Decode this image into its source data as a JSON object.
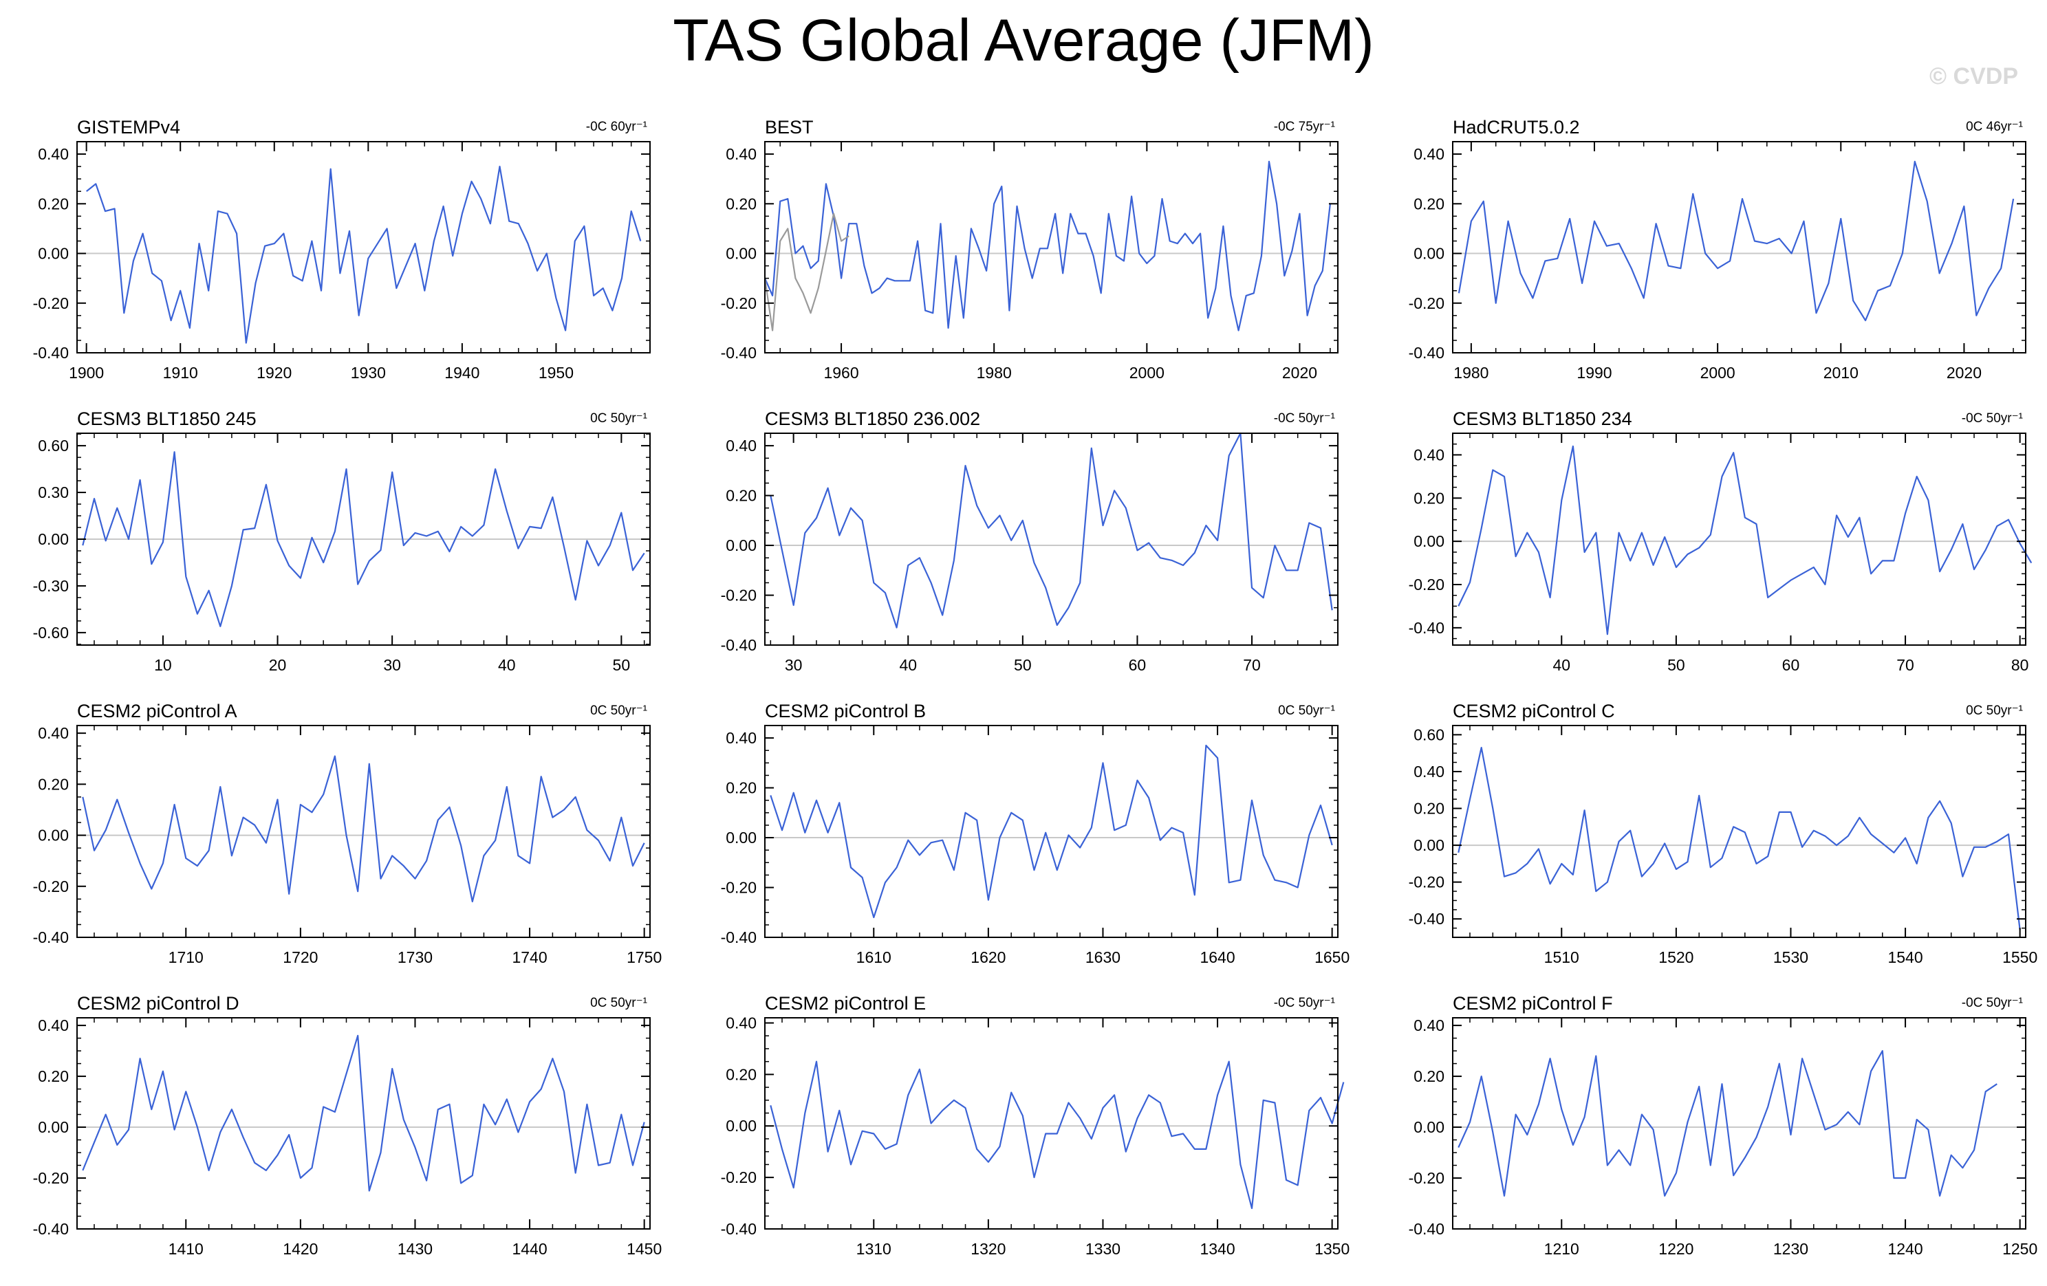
{
  "title": "TAS Global Average (JFM)",
  "watermark": "© CVDP",
  "colors": {
    "series": "#3a62d6",
    "secondary": "#9a9a9a",
    "zero_line": "#c8c8c8",
    "axes": "#000000"
  },
  "chart_data": [
    {
      "type": "line",
      "title": "GISTEMPv4",
      "trend": "-0C 60yr⁻¹",
      "xlim": [
        1899,
        1960
      ],
      "ylim": [
        -0.4,
        0.45
      ],
      "xticks": [
        1900,
        1910,
        1920,
        1930,
        1940,
        1950
      ],
      "yticks": [
        -0.4,
        -0.2,
        0.0,
        0.2,
        0.4
      ],
      "ytick_labels": [
        "-0.40",
        "-0.20",
        "0.00",
        "0.20",
        "0.40"
      ],
      "x_start": 1900,
      "series": [
        {
          "values": [
            0.25,
            0.28,
            0.17,
            0.18,
            -0.24,
            -0.03,
            0.08,
            -0.08,
            -0.11,
            -0.27,
            -0.15,
            -0.3,
            0.04,
            -0.15,
            0.17,
            0.16,
            0.08,
            -0.36,
            -0.12,
            0.03,
            0.04,
            0.08,
            -0.09,
            -0.11,
            0.05,
            -0.15,
            0.34,
            -0.08,
            0.09,
            -0.25,
            -0.02,
            0.04,
            0.1,
            -0.14,
            -0.05,
            0.04,
            -0.15,
            0.05,
            0.19,
            -0.01,
            0.16,
            0.29,
            0.22,
            0.12,
            0.35,
            0.13,
            0.12,
            0.04,
            -0.07,
            0.0,
            -0.18,
            -0.31,
            0.05,
            0.11,
            -0.17,
            -0.14,
            -0.23,
            -0.1,
            0.17,
            0.05
          ]
        }
      ]
    },
    {
      "type": "line",
      "title": "BEST",
      "trend": "-0C 75yr⁻¹",
      "xlim": [
        1950,
        2025
      ],
      "ylim": [
        -0.4,
        0.45
      ],
      "xticks": [
        1960,
        1980,
        2000,
        2020
      ],
      "yticks": [
        -0.4,
        -0.2,
        0.0,
        0.2,
        0.4
      ],
      "ytick_labels": [
        "-0.40",
        "-0.20",
        "0.00",
        "0.20",
        "0.40"
      ],
      "x_start": 1950,
      "series": [
        {
          "values": [
            -0.1,
            -0.17,
            0.21,
            0.22,
            0.0,
            0.03,
            -0.06,
            -0.03,
            0.28,
            0.15,
            -0.1,
            0.12,
            0.12,
            -0.05,
            -0.16,
            -0.14,
            -0.1,
            -0.11,
            -0.11,
            -0.11,
            0.05,
            -0.23,
            -0.24,
            0.12,
            -0.3,
            -0.01,
            -0.26,
            0.1,
            0.02,
            -0.07,
            0.2,
            0.27,
            -0.23,
            0.19,
            0.02,
            -0.1,
            0.02,
            0.02,
            0.16,
            -0.08,
            0.16,
            0.08,
            0.08,
            -0.01,
            -0.16,
            0.16,
            -0.01,
            -0.03,
            0.23,
            0.0,
            -0.04,
            -0.01,
            0.22,
            0.05,
            0.04,
            0.08,
            0.04,
            0.08,
            -0.26,
            -0.14,
            0.11,
            -0.17,
            -0.31,
            -0.17,
            -0.16,
            -0.01,
            0.37,
            0.2,
            -0.09,
            0.01,
            0.16,
            -0.25,
            -0.13,
            -0.07,
            0.2
          ]
        },
        {
          "x_start": 1950,
          "values": [
            -0.1,
            -0.31,
            0.05,
            0.1,
            -0.1,
            -0.16,
            -0.24,
            -0.14,
            0.01,
            0.16,
            0.05,
            0.07
          ]
        }
      ]
    },
    {
      "type": "line",
      "title": "HadCRUT5.0.2",
      "trend": "0C 46yr⁻¹",
      "xlim": [
        1978.5,
        2025
      ],
      "ylim": [
        -0.4,
        0.45
      ],
      "xticks": [
        1980,
        1990,
        2000,
        2010,
        2020
      ],
      "yticks": [
        -0.4,
        -0.2,
        0.0,
        0.2,
        0.4
      ],
      "ytick_labels": [
        "-0.40",
        "-0.20",
        "0.00",
        "0.20",
        "0.40"
      ],
      "x_start": 1979,
      "series": [
        {
          "values": [
            -0.16,
            0.13,
            0.21,
            -0.2,
            0.13,
            -0.08,
            -0.18,
            -0.03,
            -0.02,
            0.14,
            -0.12,
            0.13,
            0.03,
            0.04,
            -0.06,
            -0.18,
            0.12,
            -0.05,
            -0.06,
            0.24,
            0.0,
            -0.06,
            -0.03,
            0.22,
            0.05,
            0.04,
            0.06,
            0.0,
            0.13,
            -0.24,
            -0.12,
            0.14,
            -0.19,
            -0.27,
            -0.15,
            -0.13,
            0.0,
            0.37,
            0.21,
            -0.08,
            0.04,
            0.19,
            -0.25,
            -0.14,
            -0.06,
            0.22
          ]
        }
      ]
    },
    {
      "type": "line",
      "title": "CESM3 BLT1850 245",
      "trend": "0C 50yr⁻¹",
      "xlim": [
        2.5,
        52.5
      ],
      "ylim": [
        -0.68,
        0.68
      ],
      "xticks": [
        10,
        20,
        30,
        40,
        50
      ],
      "yticks": [
        -0.6,
        -0.3,
        0.0,
        0.3,
        0.6
      ],
      "ytick_labels": [
        "-0.60",
        "-0.30",
        "0.00",
        "0.30",
        "0.60"
      ],
      "x_start": 3,
      "series": [
        {
          "values": [
            -0.04,
            0.26,
            -0.01,
            0.2,
            0.0,
            0.38,
            -0.16,
            -0.02,
            0.56,
            -0.24,
            -0.48,
            -0.33,
            -0.56,
            -0.3,
            0.06,
            0.07,
            0.35,
            -0.01,
            -0.17,
            -0.25,
            0.01,
            -0.15,
            0.05,
            0.45,
            -0.29,
            -0.14,
            -0.07,
            0.43,
            -0.04,
            0.04,
            0.02,
            0.05,
            -0.08,
            0.08,
            0.02,
            0.09,
            0.45,
            0.18,
            -0.06,
            0.08,
            0.07,
            0.27,
            -0.05,
            -0.39,
            -0.01,
            -0.17,
            -0.04,
            0.17,
            -0.2,
            -0.09
          ]
        }
      ]
    },
    {
      "type": "line",
      "title": "CESM3 BLT1850 236.002",
      "trend": "-0C 50yr⁻¹",
      "xlim": [
        27.5,
        77.5
      ],
      "ylim": [
        -0.4,
        0.45
      ],
      "xticks": [
        30,
        40,
        50,
        60,
        70
      ],
      "yticks": [
        -0.4,
        -0.2,
        0.0,
        0.2,
        0.4
      ],
      "ytick_labels": [
        "-0.40",
        "-0.20",
        "0.00",
        "0.20",
        "0.40"
      ],
      "x_start": 28,
      "series": [
        {
          "values": [
            0.2,
            -0.02,
            -0.24,
            0.05,
            0.11,
            0.23,
            0.04,
            0.15,
            0.1,
            -0.15,
            -0.19,
            -0.33,
            -0.08,
            -0.05,
            -0.15,
            -0.28,
            -0.06,
            0.32,
            0.16,
            0.07,
            0.12,
            0.02,
            0.1,
            -0.07,
            -0.17,
            -0.32,
            -0.25,
            -0.15,
            0.39,
            0.08,
            0.22,
            0.15,
            -0.02,
            0.01,
            -0.05,
            -0.06,
            -0.08,
            -0.03,
            0.08,
            0.02,
            0.36,
            0.45,
            -0.17,
            -0.21,
            0.0,
            -0.1,
            -0.1,
            0.09,
            0.07,
            -0.26
          ]
        }
      ]
    },
    {
      "type": "line",
      "title": "CESM3 BLT1850 234",
      "trend": "-0C 50yr⁻¹",
      "xlim": [
        30.5,
        80.5
      ],
      "ylim": [
        -0.48,
        0.5
      ],
      "xticks": [
        40,
        50,
        60,
        70,
        80
      ],
      "yticks": [
        -0.4,
        -0.2,
        0.0,
        0.2,
        0.4
      ],
      "ytick_labels": [
        "-0.40",
        "-0.20",
        "0.00",
        "0.20",
        "0.40"
      ],
      "x_start": 31,
      "series": [
        {
          "values": [
            -0.3,
            -0.19,
            0.06,
            0.33,
            0.3,
            -0.07,
            0.04,
            -0.05,
            -0.26,
            0.19,
            0.44,
            -0.05,
            0.04,
            -0.43,
            0.04,
            -0.09,
            0.04,
            -0.11,
            0.02,
            -0.12,
            -0.06,
            -0.03,
            0.03,
            0.3,
            0.41,
            0.11,
            0.08,
            -0.26,
            -0.22,
            -0.18,
            -0.15,
            -0.12,
            -0.2,
            0.12,
            0.02,
            0.11,
            -0.15,
            -0.09,
            -0.09,
            0.13,
            0.3,
            0.19,
            -0.14,
            -0.04,
            0.08,
            -0.13,
            -0.04,
            0.07,
            0.1,
            -0.01,
            -0.1
          ]
        }
      ]
    },
    {
      "type": "line",
      "title": "CESM2 piControl A",
      "trend": "0C 50yr⁻¹",
      "xlim": [
        1700.5,
        1750.5
      ],
      "ylim": [
        -0.4,
        0.43
      ],
      "xticks": [
        1710,
        1720,
        1730,
        1740,
        1750
      ],
      "yticks": [
        -0.4,
        -0.2,
        0.0,
        0.2,
        0.4
      ],
      "ytick_labels": [
        "-0.40",
        "-0.20",
        "0.00",
        "0.20",
        "0.40"
      ],
      "x_start": 1701,
      "series": [
        {
          "values": [
            0.15,
            -0.06,
            0.02,
            0.14,
            0.01,
            -0.11,
            -0.21,
            -0.11,
            0.12,
            -0.09,
            -0.12,
            -0.06,
            0.19,
            -0.08,
            0.07,
            0.04,
            -0.03,
            0.14,
            -0.23,
            0.12,
            0.09,
            0.16,
            0.31,
            0.0,
            -0.22,
            0.28,
            -0.17,
            -0.08,
            -0.12,
            -0.17,
            -0.1,
            0.06,
            0.11,
            -0.04,
            -0.26,
            -0.08,
            -0.02,
            0.19,
            -0.08,
            -0.11,
            0.23,
            0.07,
            0.1,
            0.15,
            0.02,
            -0.02,
            -0.1,
            0.07,
            -0.12,
            -0.03
          ]
        }
      ]
    },
    {
      "type": "line",
      "title": "CESM2 piControl B",
      "trend": "0C 50yr⁻¹",
      "xlim": [
        1600.5,
        1650.5
      ],
      "ylim": [
        -0.4,
        0.45
      ],
      "xticks": [
        1610,
        1620,
        1630,
        1640,
        1650
      ],
      "yticks": [
        -0.4,
        -0.2,
        0.0,
        0.2,
        0.4
      ],
      "ytick_labels": [
        "-0.40",
        "-0.20",
        "0.00",
        "0.20",
        "0.40"
      ],
      "x_start": 1601,
      "series": [
        {
          "values": [
            0.17,
            0.03,
            0.18,
            0.02,
            0.15,
            0.02,
            0.14,
            -0.12,
            -0.16,
            -0.32,
            -0.18,
            -0.12,
            -0.01,
            -0.07,
            -0.02,
            -0.01,
            -0.13,
            0.1,
            0.07,
            -0.25,
            0.0,
            0.1,
            0.07,
            -0.13,
            0.02,
            -0.13,
            0.01,
            -0.04,
            0.04,
            0.3,
            0.03,
            0.05,
            0.23,
            0.16,
            -0.01,
            0.04,
            0.02,
            -0.23,
            0.37,
            0.32,
            -0.18,
            -0.17,
            0.15,
            -0.07,
            -0.17,
            -0.18,
            -0.2,
            0.01,
            0.13,
            -0.03
          ]
        }
      ]
    },
    {
      "type": "line",
      "title": "CESM2 piControl C",
      "trend": "0C 50yr⁻¹",
      "xlim": [
        1500.5,
        1550.5
      ],
      "ylim": [
        -0.5,
        0.65
      ],
      "xticks": [
        1510,
        1520,
        1530,
        1540,
        1550
      ],
      "yticks": [
        -0.4,
        -0.2,
        0.0,
        0.2,
        0.4,
        0.6
      ],
      "ytick_labels": [
        "-0.40",
        "-0.20",
        "0.00",
        "0.20",
        "0.40",
        "0.60"
      ],
      "x_start": 1501,
      "series": [
        {
          "values": [
            -0.04,
            0.25,
            0.53,
            0.2,
            -0.17,
            -0.15,
            -0.1,
            -0.02,
            -0.21,
            -0.1,
            -0.16,
            0.19,
            -0.25,
            -0.2,
            0.02,
            0.08,
            -0.17,
            -0.1,
            0.01,
            -0.13,
            -0.09,
            0.27,
            -0.12,
            -0.07,
            0.1,
            0.07,
            -0.1,
            -0.06,
            0.18,
            0.18,
            -0.01,
            0.08,
            0.05,
            0.0,
            0.05,
            0.15,
            0.06,
            0.01,
            -0.04,
            0.04,
            -0.1,
            0.15,
            0.24,
            0.12,
            -0.17,
            -0.01,
            -0.01,
            0.02,
            0.06,
            -0.46
          ]
        }
      ]
    },
    {
      "type": "line",
      "title": "CESM2 piControl D",
      "trend": "0C 50yr⁻¹",
      "xlim": [
        1400.5,
        1450.5
      ],
      "ylim": [
        -0.4,
        0.43
      ],
      "xticks": [
        1410,
        1420,
        1430,
        1440,
        1450
      ],
      "yticks": [
        -0.4,
        -0.2,
        0.0,
        0.2,
        0.4
      ],
      "ytick_labels": [
        "-0.40",
        "-0.20",
        "0.00",
        "0.20",
        "0.40"
      ],
      "x_start": 1401,
      "series": [
        {
          "values": [
            -0.17,
            -0.06,
            0.05,
            -0.07,
            -0.01,
            0.27,
            0.07,
            0.22,
            -0.01,
            0.14,
            0.0,
            -0.17,
            -0.02,
            0.07,
            -0.04,
            -0.14,
            -0.17,
            -0.11,
            -0.03,
            -0.2,
            -0.16,
            0.08,
            0.06,
            0.21,
            0.36,
            -0.25,
            -0.1,
            0.23,
            0.03,
            -0.08,
            -0.21,
            0.07,
            0.09,
            -0.22,
            -0.19,
            0.09,
            0.01,
            0.11,
            -0.02,
            0.1,
            0.15,
            0.27,
            0.14,
            -0.18,
            0.09,
            -0.15,
            -0.14,
            0.05,
            -0.15,
            0.02
          ]
        }
      ]
    },
    {
      "type": "line",
      "title": "CESM2 piControl E",
      "trend": "-0C 50yr⁻¹",
      "xlim": [
        1300.5,
        1350.5
      ],
      "ylim": [
        -0.4,
        0.42
      ],
      "xticks": [
        1310,
        1320,
        1330,
        1340,
        1350
      ],
      "yticks": [
        -0.4,
        -0.2,
        0.0,
        0.2,
        0.4
      ],
      "ytick_labels": [
        "-0.40",
        "-0.20",
        "0.00",
        "0.20",
        "0.40"
      ],
      "x_start": 1301,
      "series": [
        {
          "values": [
            0.08,
            -0.09,
            -0.24,
            0.05,
            0.25,
            -0.1,
            0.06,
            -0.15,
            -0.02,
            -0.03,
            -0.09,
            -0.07,
            0.12,
            0.22,
            0.01,
            0.06,
            0.1,
            0.07,
            -0.09,
            -0.14,
            -0.08,
            0.13,
            0.04,
            -0.2,
            -0.03,
            -0.03,
            0.09,
            0.03,
            -0.05,
            0.07,
            0.12,
            -0.1,
            0.03,
            0.12,
            0.09,
            -0.04,
            -0.03,
            -0.09,
            -0.09,
            0.12,
            0.25,
            -0.15,
            -0.32,
            0.1,
            0.09,
            -0.21,
            -0.23,
            0.06,
            0.11,
            0.01,
            0.17
          ]
        }
      ]
    },
    {
      "type": "line",
      "title": "CESM2 piControl F",
      "trend": "-0C 50yr⁻¹",
      "xlim": [
        1200.5,
        1250.5
      ],
      "ylim": [
        -0.4,
        0.43
      ],
      "xticks": [
        1210,
        1220,
        1230,
        1240,
        1250
      ],
      "yticks": [
        -0.4,
        -0.2,
        0.0,
        0.2,
        0.4
      ],
      "ytick_labels": [
        "-0.40",
        "-0.20",
        "0.00",
        "0.20",
        "0.40"
      ],
      "x_start": 1201,
      "series": [
        {
          "values": [
            -0.08,
            0.02,
            0.2,
            -0.02,
            -0.27,
            0.05,
            -0.03,
            0.09,
            0.27,
            0.07,
            -0.07,
            0.04,
            0.28,
            -0.15,
            -0.09,
            -0.15,
            0.05,
            -0.01,
            -0.27,
            -0.18,
            0.02,
            0.16,
            -0.15,
            0.17,
            -0.19,
            -0.12,
            -0.04,
            0.08,
            0.25,
            -0.03,
            0.27,
            0.13,
            -0.01,
            0.01,
            0.06,
            0.01,
            0.22,
            0.3,
            -0.2,
            -0.2,
            0.03,
            -0.01,
            -0.27,
            -0.11,
            -0.16,
            -0.09,
            0.14,
            0.17
          ]
        }
      ]
    }
  ]
}
